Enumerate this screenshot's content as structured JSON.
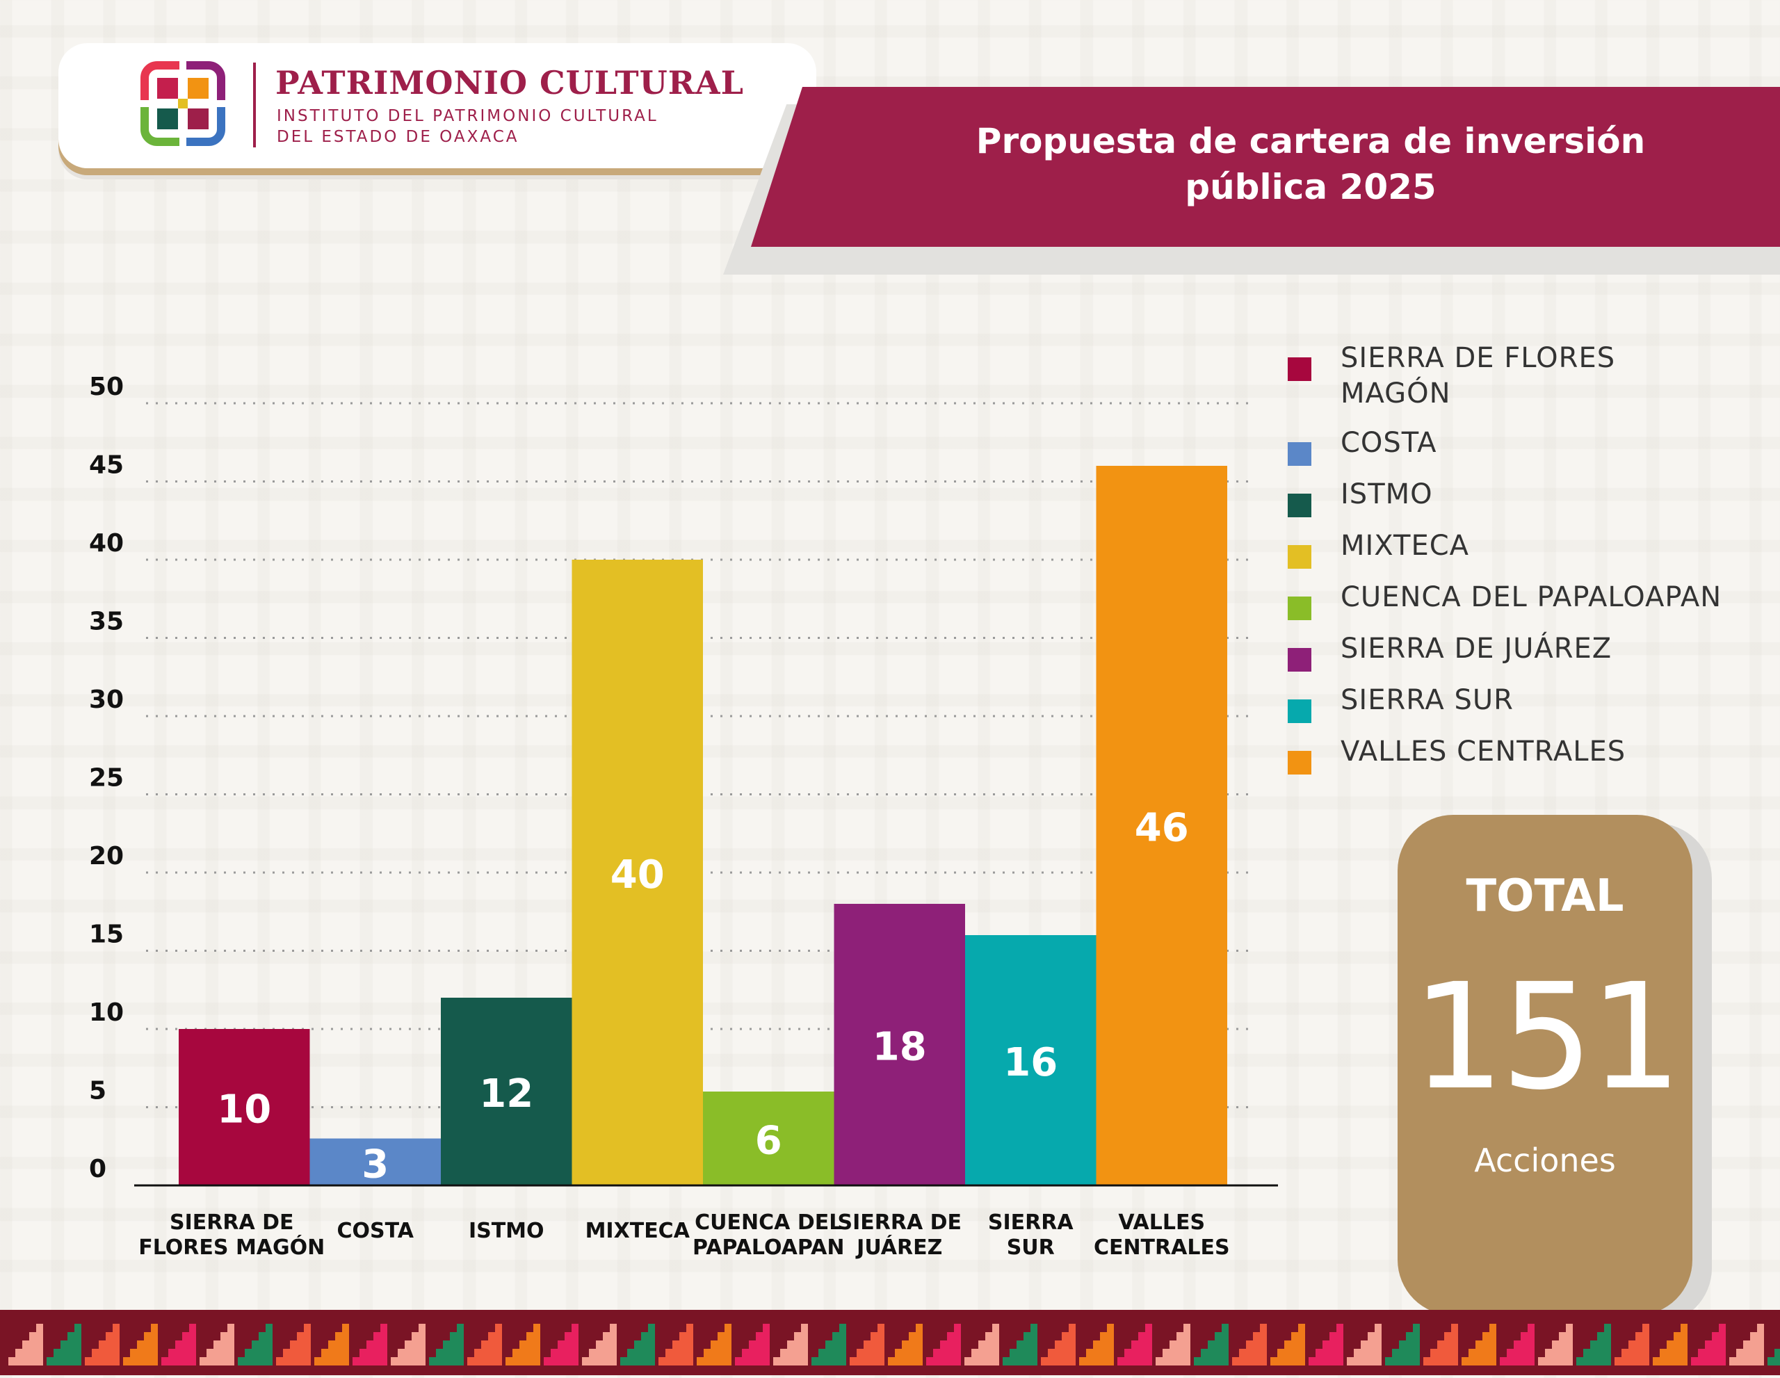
{
  "header": {
    "org_name": "PATRIMONIO CULTURAL",
    "org_sub_line1": "INSTITUTO DEL PATRIMONIO CULTURAL",
    "org_sub_line2": "DEL ESTADO DE OAXACA",
    "title_line1": "Propuesta de cartera de inversión",
    "title_line2": "pública 2025"
  },
  "chart_data": {
    "type": "bar",
    "title": "Propuesta de cartera de inversión pública 2025",
    "categories": [
      "SIERRA DE FLORES MAGÓN",
      "COSTA",
      "ISTMO",
      "MIXTECA",
      "CUENCA DEL PAPALOAPAN",
      "SIERRA DE JUÁREZ",
      "SIERRA SUR",
      "VALLES CENTRALES"
    ],
    "category_tick_lines": [
      [
        "SIERRA DE",
        "FLORES MAGÓN"
      ],
      [
        "COSTA"
      ],
      [
        "ISTMO"
      ],
      [
        "MIXTECA"
      ],
      [
        "CUENCA DEL",
        "PAPALOAPAN"
      ],
      [
        "SIERRA DE",
        "JUÁREZ"
      ],
      [
        "SIERRA",
        "SUR"
      ],
      [
        "VALLES",
        "CENTRALES"
      ]
    ],
    "values": [
      10,
      3,
      12,
      40,
      6,
      18,
      16,
      46
    ],
    "colors": [
      "#a7073e",
      "#5b87c8",
      "#155a4c",
      "#e3bf24",
      "#8abd28",
      "#8e2078",
      "#06a9ad",
      "#f29312"
    ],
    "ylim": [
      0,
      50
    ],
    "yticks": [
      0,
      5,
      10,
      15,
      20,
      25,
      30,
      35,
      40,
      45,
      50
    ],
    "grid": true,
    "legend_position": "right",
    "data_labels": true
  },
  "legend": [
    {
      "label_line1": "SIERRA DE FLORES",
      "label_line2": "MAGÓN",
      "color": "#a7073e"
    },
    {
      "label_line1": "COSTA",
      "label_line2": "",
      "color": "#5b87c8"
    },
    {
      "label_line1": "ISTMO",
      "label_line2": "",
      "color": "#155a4c"
    },
    {
      "label_line1": "MIXTECA",
      "label_line2": "",
      "color": "#e3bf24"
    },
    {
      "label_line1": "CUENCA DEL PAPALOAPAN",
      "label_line2": "",
      "color": "#8abd28"
    },
    {
      "label_line1": "SIERRA DE JUÁREZ",
      "label_line2": "",
      "color": "#8e2078"
    },
    {
      "label_line1": "SIERRA SUR",
      "label_line2": "",
      "color": "#06a9ad"
    },
    {
      "label_line1": "VALLES CENTRALES",
      "label_line2": "",
      "color": "#f29312"
    }
  ],
  "total": {
    "label": "TOTAL",
    "value": "151",
    "unit": "Acciones"
  },
  "colors": {
    "brand": "#9e1f4a",
    "card": "#b28f5e",
    "border": "#7a1425"
  }
}
